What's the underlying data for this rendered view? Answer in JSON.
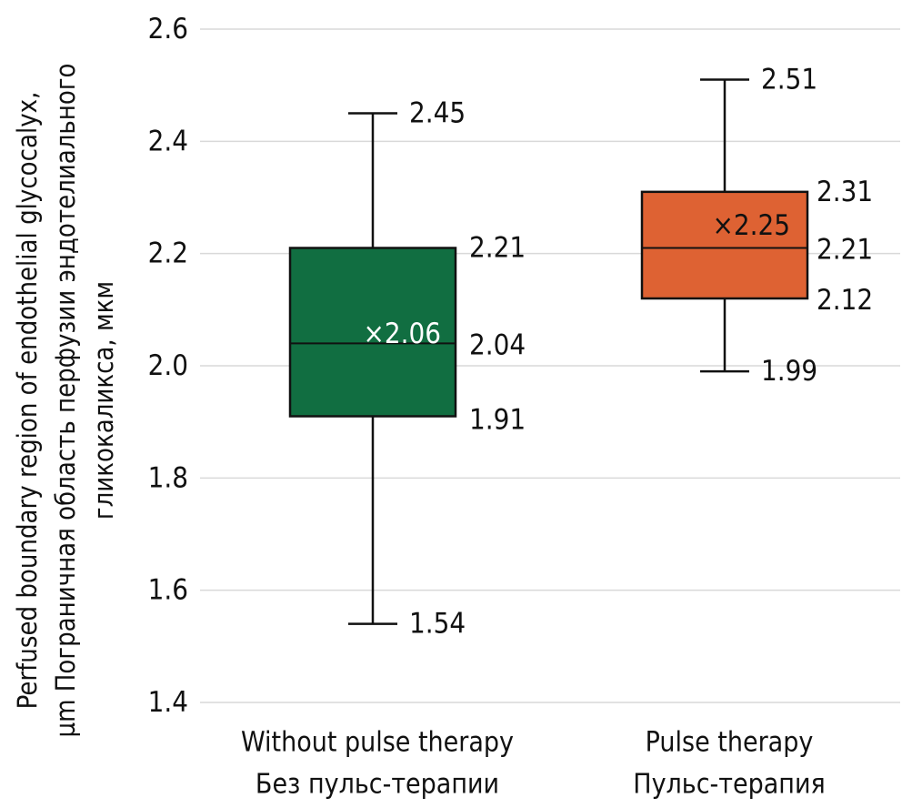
{
  "chart_data": {
    "type": "box",
    "ylabel_lines": [
      "Perfused boundary region of endothelial glycocalyx,",
      "µm Пограничная область перфузии эндотелиального",
      "гликокаликса, мкм"
    ],
    "ylim": [
      1.4,
      2.6
    ],
    "yticks": [
      "1.4",
      "1.6",
      "1.8",
      "2.0",
      "2.2",
      "2.4",
      "2.6"
    ],
    "grid": true,
    "mean_prefix": "×",
    "series": [
      {
        "category_lines": [
          "Without pulse therapy",
          "Без пульс-терапии"
        ],
        "min": 1.54,
        "q1": 1.91,
        "median": 2.04,
        "q3": 2.21,
        "max": 2.45,
        "mean": 2.06,
        "labels": {
          "min": "1.54",
          "q1": "1.91",
          "median": "2.04",
          "q3": "2.21",
          "max": "2.45",
          "mean": "2.06"
        },
        "color": "#116e41",
        "mean_color": "#ffffff"
      },
      {
        "category_lines": [
          "Pulse therapy",
          "Пульс-терапия"
        ],
        "min": 1.99,
        "q1": 2.12,
        "median": 2.21,
        "q3": 2.31,
        "max": 2.51,
        "mean": 2.25,
        "labels": {
          "min": "1.99",
          "q1": "2.12",
          "median": "2.21",
          "q3": "2.31",
          "max": "2.51",
          "mean": "2.25"
        },
        "color": "#de6233",
        "mean_color": "#111111"
      }
    ]
  }
}
